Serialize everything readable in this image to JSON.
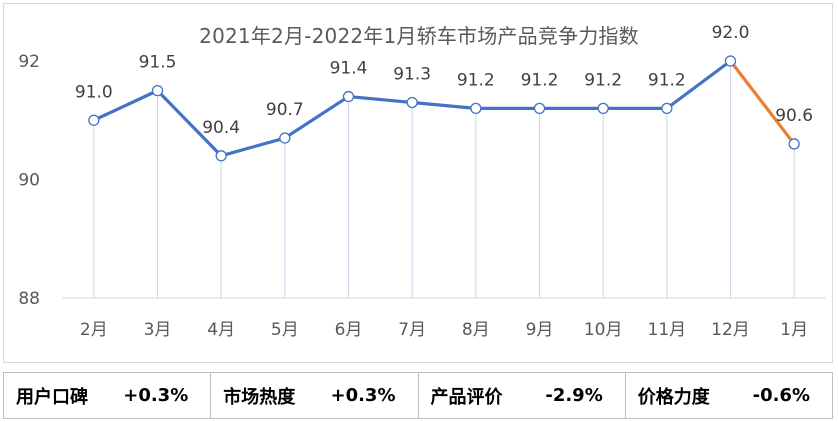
{
  "chart_data": {
    "type": "line",
    "title": "2021年2月-2022年1月轿车市场产品竞争力指数",
    "categories": [
      "2月",
      "3月",
      "4月",
      "5月",
      "6月",
      "7月",
      "8月",
      "9月",
      "10月",
      "11月",
      "12月",
      "1月"
    ],
    "values": [
      91.0,
      91.5,
      90.4,
      90.7,
      91.4,
      91.3,
      91.2,
      91.2,
      91.2,
      91.2,
      92.0,
      90.6
    ],
    "data_labels": [
      "91.0",
      "91.5",
      "90.4",
      "90.7",
      "91.4",
      "91.3",
      "91.2",
      "91.2",
      "91.2",
      "91.2",
      "92.0",
      "90.6"
    ],
    "yticks": [
      "88",
      "90",
      "92"
    ],
    "ylim": [
      88,
      92
    ],
    "colors": {
      "main": "#4472C4",
      "last_segment": "#ED7D31"
    },
    "xlabel": "",
    "ylabel": "",
    "grid": false
  },
  "metrics": [
    {
      "label": "用户口碑",
      "value": "+0.3%"
    },
    {
      "label": "市场热度",
      "value": "+0.3%"
    },
    {
      "label": "产品评价",
      "value": "-2.9%"
    },
    {
      "label": "价格力度",
      "value": "-0.6%"
    }
  ]
}
